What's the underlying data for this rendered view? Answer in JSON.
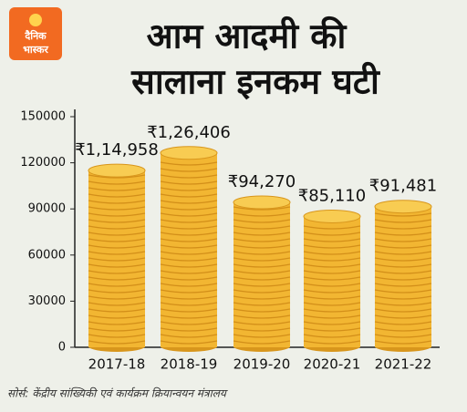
{
  "logo": [
    "दैनिक",
    "भास्कर"
  ],
  "source": "सोर्स: केंद्रीय सांख्यिकी एवं कार्यक्रम क्रियान्वयन मंत्रालय",
  "chart_data": {
    "type": "bar",
    "title": [
      "आम आदमी की",
      "सालाना इनकम घटी"
    ],
    "categories": [
      "2017-18",
      "2018-19",
      "2019-20",
      "2020-21",
      "2021-22"
    ],
    "values": [
      114958,
      126406,
      94270,
      85110,
      91481
    ],
    "value_labels": [
      "₹1,14,958",
      "₹1,26,406",
      "₹94,270",
      "₹85,110",
      "₹91,481"
    ],
    "color": "#f2b632",
    "ylim": [
      0,
      150000
    ],
    "yticks": [
      0,
      30000,
      60000,
      90000,
      120000,
      150000
    ],
    "grid": false
  }
}
